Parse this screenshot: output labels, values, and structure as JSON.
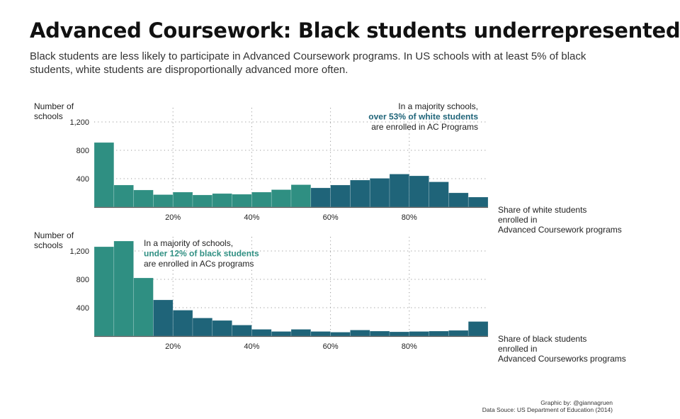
{
  "title": "Advanced Coursework: Black students underrepresented",
  "subtitle": "Black students are less likely to participate in Advanced Coursework programs. In US schools with at least 5% of black students, white students are disproportionally advanced more often.",
  "colors": {
    "teal": "#2f8f82",
    "navy": "#1f6479",
    "grid": "#9a9a9a",
    "axis": "#555555"
  },
  "chart_data": [
    {
      "type": "bar",
      "ylabel_lines": [
        "Number of",
        "schools"
      ],
      "xlabel_lines": [
        "Share of white students",
        "enrolled in",
        "Advanced Coursework programs"
      ],
      "x_ticks": [
        20,
        40,
        60,
        80
      ],
      "x_tick_labels": [
        "20%",
        "40%",
        "60%",
        "80%"
      ],
      "y_ticks": [
        400,
        800,
        1200
      ],
      "y_tick_labels": [
        "400",
        "800",
        "1,200"
      ],
      "xlim": [
        0,
        100
      ],
      "ylim": [
        0,
        1350
      ],
      "bin_width": 5,
      "x": [
        0,
        5,
        10,
        15,
        20,
        25,
        30,
        35,
        40,
        45,
        50,
        55,
        60,
        65,
        70,
        75,
        80,
        85,
        90,
        95
      ],
      "values": [
        910,
        310,
        240,
        175,
        210,
        170,
        190,
        180,
        210,
        245,
        315,
        270,
        310,
        380,
        405,
        465,
        440,
        355,
        200,
        140
      ],
      "highlight_threshold": 55,
      "annotation_lines": [
        "In a majority schools,",
        "over 53% of white students",
        "are enrolled in AC Programs"
      ],
      "annotation_highlight_line": 1,
      "annotation_align": "right",
      "grid": true
    },
    {
      "type": "bar",
      "ylabel_lines": [
        "Number of",
        "schools"
      ],
      "xlabel_lines": [
        "Share of black students",
        "enrolled in",
        "Advanced Courseworks programs"
      ],
      "x_ticks": [
        20,
        40,
        60,
        80
      ],
      "x_tick_labels": [
        "20%",
        "40%",
        "60%",
        "80%"
      ],
      "y_ticks": [
        400,
        800,
        1200
      ],
      "y_tick_labels": [
        "400",
        "800",
        "1,200"
      ],
      "xlim": [
        0,
        100
      ],
      "ylim": [
        0,
        1350
      ],
      "bin_width": 5,
      "x": [
        0,
        5,
        10,
        15,
        20,
        25,
        30,
        35,
        40,
        45,
        50,
        55,
        60,
        65,
        70,
        75,
        80,
        85,
        90,
        95
      ],
      "values": [
        1260,
        1340,
        820,
        510,
        365,
        255,
        220,
        155,
        95,
        65,
        95,
        65,
        55,
        85,
        70,
        60,
        65,
        70,
        80,
        205
      ],
      "highlight_threshold": 15,
      "annotation_lines": [
        "In a majority of schools,",
        "under 12% of black students",
        "are enrolled in ACs programs"
      ],
      "annotation_highlight_line": 1,
      "annotation_align": "left",
      "grid": true
    }
  ],
  "credit": {
    "line1": "Graphic by: @giannagruen",
    "line2": "Data Souce: US Department of Education (2014)"
  }
}
